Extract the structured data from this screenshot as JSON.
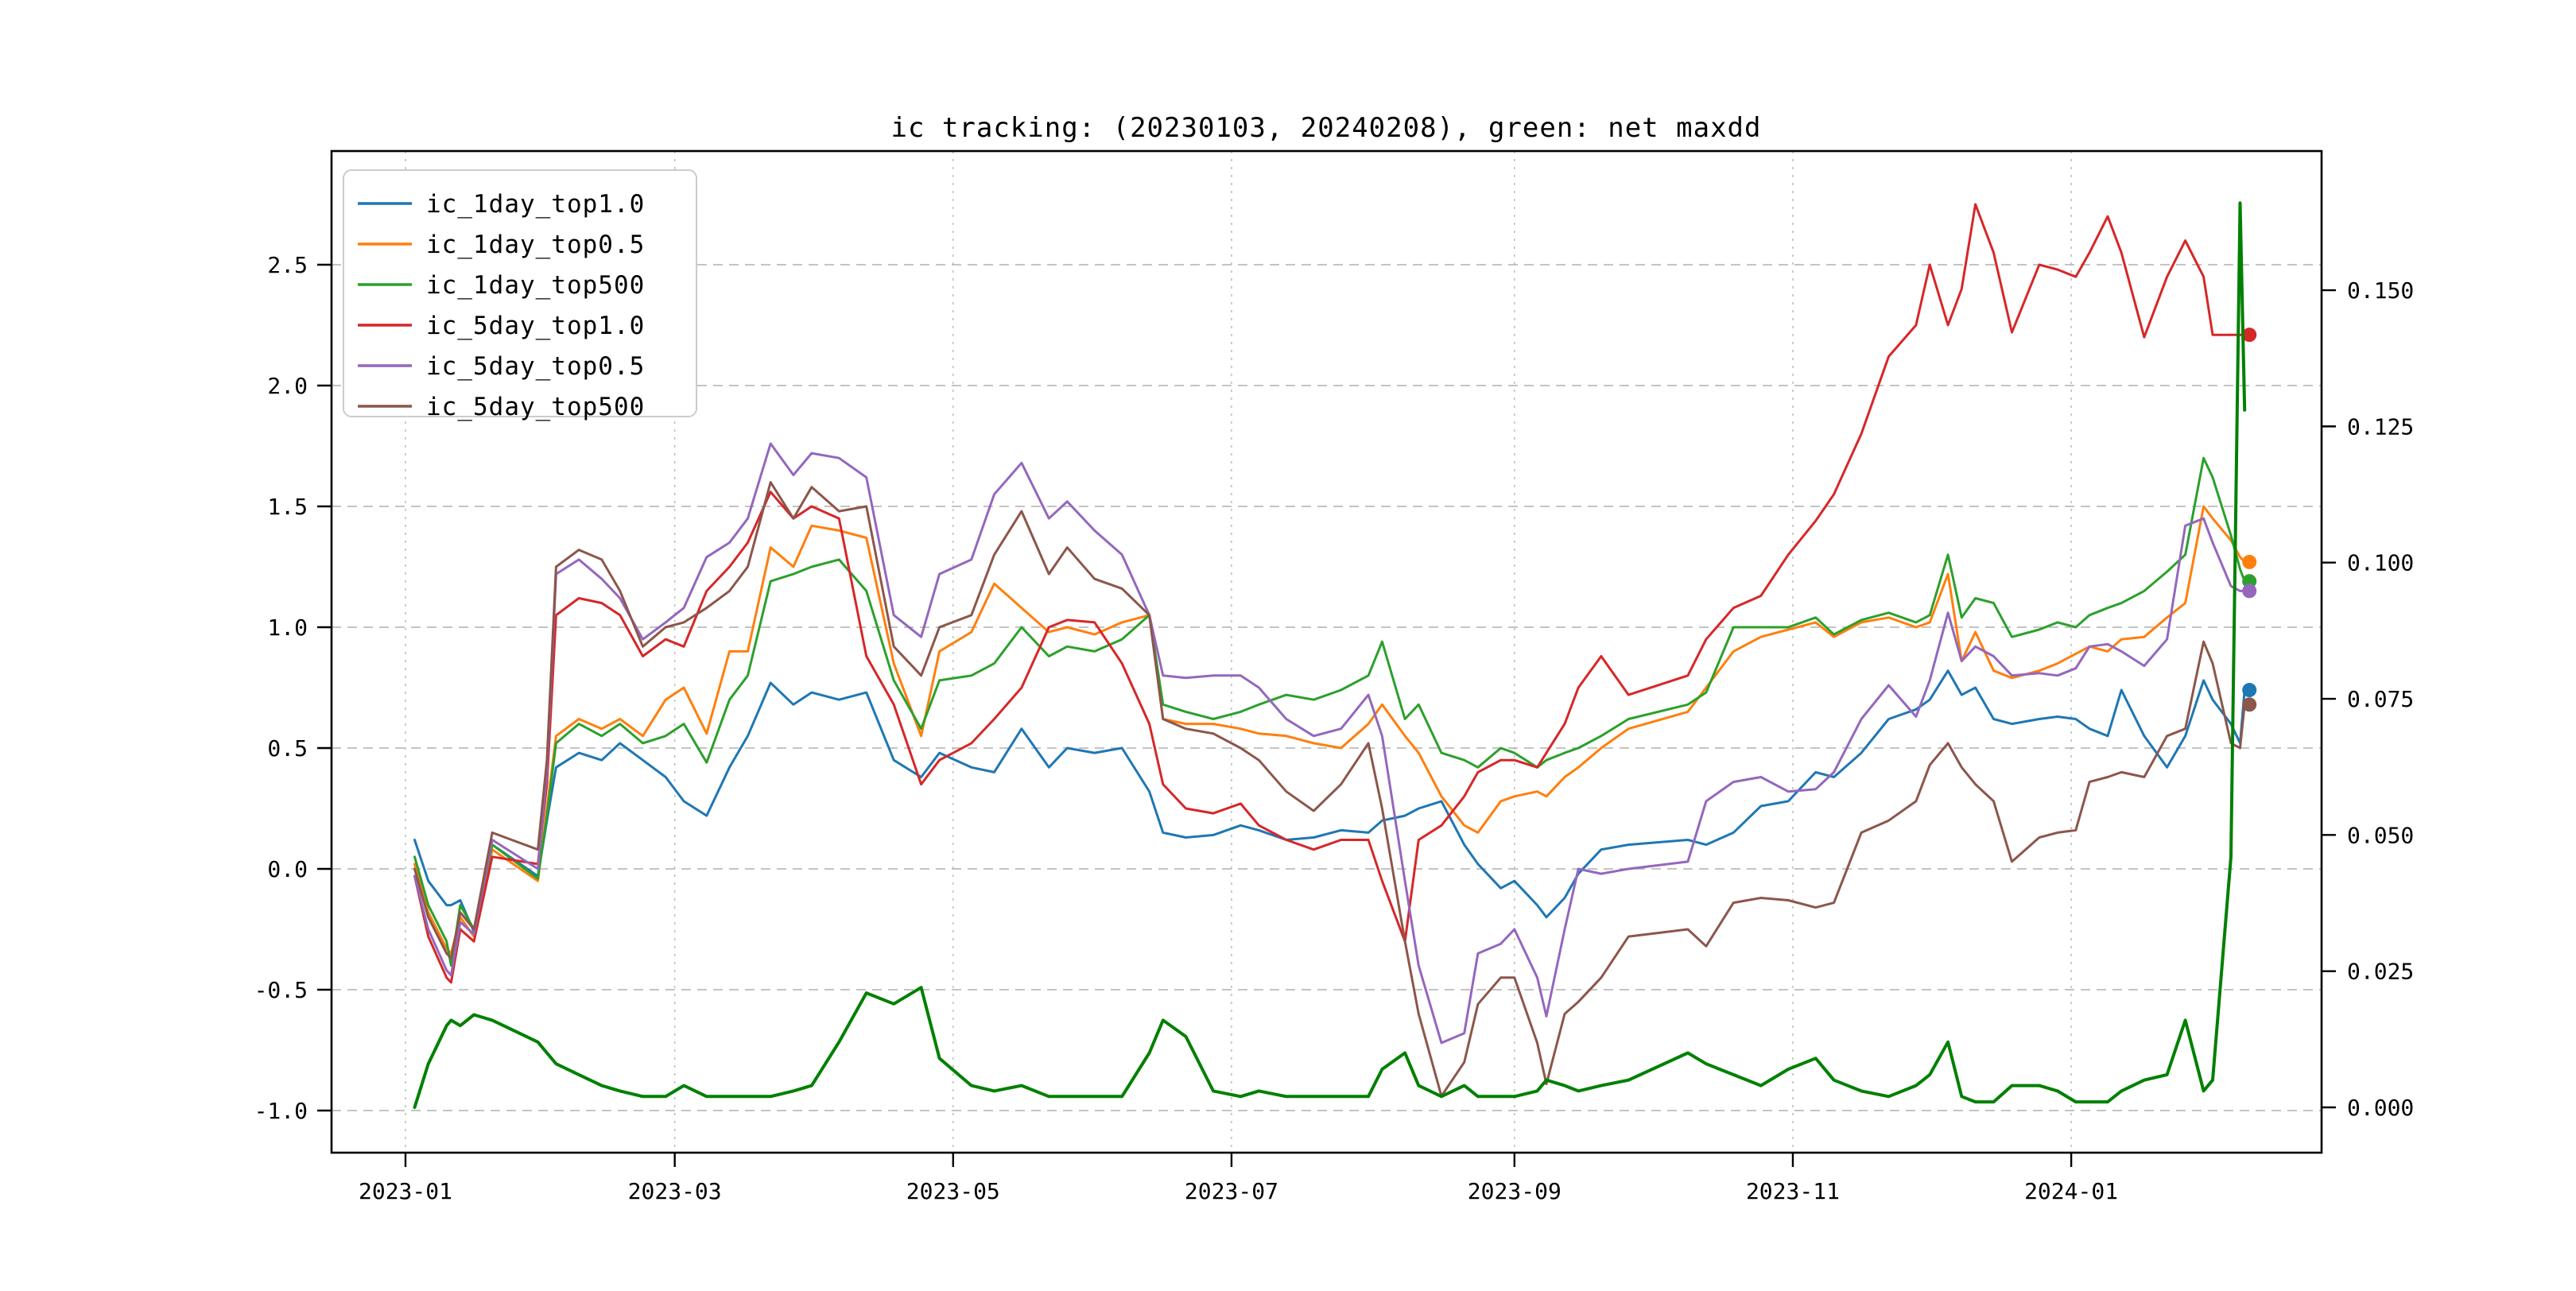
{
  "figure": {
    "background": "#ffffff",
    "spine_color": "#000000",
    "h_grid_color": "#b0b0b0",
    "v_grid_color": "#c0c0c0"
  },
  "chart_data": {
    "type": "line",
    "title": "ic tracking: (20230103, 20240208), green: net maxdd",
    "xlabel": "",
    "ylabel": "",
    "legend_position": "upper-left",
    "grid": true,
    "x_tick_labels": [
      "2023-01",
      "2023-03",
      "2023-05",
      "2023-07",
      "2023-09",
      "2023-11",
      "2024-01"
    ],
    "x_tick_dates": [
      "2023-01-01",
      "2023-03-01",
      "2023-05-01",
      "2023-07-01",
      "2023-09-01",
      "2023-11-01",
      "2024-01-01"
    ],
    "left_axis": {
      "ticks": [
        2.5,
        2.0,
        1.5,
        1.0,
        0.5,
        0.0,
        -0.5,
        -1.0
      ],
      "tick_labels": [
        "2.5",
        "2.0",
        "1.5",
        "1.0",
        "0.5",
        "0.0",
        "-0.5",
        "-1.0"
      ],
      "ylim": [
        -1.17,
        2.97
      ]
    },
    "right_axis": {
      "ticks": [
        0.15,
        0.125,
        0.1,
        0.075,
        0.05,
        0.025,
        0.0
      ],
      "tick_labels": [
        "0.150",
        "0.125",
        "0.100",
        "0.075",
        "0.050",
        "0.025",
        "0.000"
      ],
      "ylim": [
        -0.0083,
        0.1755
      ]
    },
    "x": [
      "2023-01-03",
      "2023-01-06",
      "2023-01-10",
      "2023-01-11",
      "2023-01-13",
      "2023-01-16",
      "2023-01-20",
      "2023-01-30",
      "2023-02-01",
      "2023-02-03",
      "2023-02-08",
      "2023-02-13",
      "2023-02-17",
      "2023-02-22",
      "2023-02-27",
      "2023-03-03",
      "2023-03-08",
      "2023-03-13",
      "2023-03-17",
      "2023-03-22",
      "2023-03-27",
      "2023-03-31",
      "2023-04-06",
      "2023-04-12",
      "2023-04-18",
      "2023-04-24",
      "2023-04-28",
      "2023-05-05",
      "2023-05-10",
      "2023-05-16",
      "2023-05-22",
      "2023-05-26",
      "2023-06-01",
      "2023-06-07",
      "2023-06-13",
      "2023-06-16",
      "2023-06-21",
      "2023-06-27",
      "2023-07-03",
      "2023-07-07",
      "2023-07-13",
      "2023-07-19",
      "2023-07-25",
      "2023-07-31",
      "2023-08-03",
      "2023-08-08",
      "2023-08-11",
      "2023-08-16",
      "2023-08-21",
      "2023-08-24",
      "2023-08-29",
      "2023-09-01",
      "2023-09-06",
      "2023-09-08",
      "2023-09-12",
      "2023-09-15",
      "2023-09-20",
      "2023-09-26",
      "2023-10-09",
      "2023-10-13",
      "2023-10-19",
      "2023-10-25",
      "2023-10-31",
      "2023-11-06",
      "2023-11-10",
      "2023-11-16",
      "2023-11-22",
      "2023-11-28",
      "2023-12-01",
      "2023-12-05",
      "2023-12-08",
      "2023-12-11",
      "2023-12-15",
      "2023-12-19",
      "2023-12-25",
      "2023-12-29",
      "2024-01-02",
      "2024-01-05",
      "2024-01-09",
      "2024-01-12",
      "2024-01-17",
      "2024-01-22",
      "2024-01-26",
      "2024-01-30",
      "2024-02-01",
      "2024-02-05",
      "2024-02-07",
      "2024-02-08"
    ],
    "series": [
      {
        "name": "ic_1day_top1.0",
        "color": "#1f77b4",
        "axis": "left",
        "width": 3,
        "end_dot": true,
        "values": [
          0.12,
          -0.05,
          -0.15,
          -0.15,
          -0.13,
          -0.26,
          0.1,
          -0.03,
          0.2,
          0.42,
          0.48,
          0.45,
          0.52,
          0.45,
          0.38,
          0.28,
          0.22,
          0.42,
          0.55,
          0.77,
          0.68,
          0.73,
          0.7,
          0.73,
          0.45,
          0.38,
          0.48,
          0.42,
          0.4,
          0.58,
          0.42,
          0.5,
          0.48,
          0.5,
          0.32,
          0.15,
          0.13,
          0.14,
          0.18,
          0.16,
          0.12,
          0.13,
          0.16,
          0.15,
          0.2,
          0.22,
          0.25,
          0.28,
          0.1,
          0.02,
          -0.08,
          -0.05,
          -0.15,
          -0.2,
          -0.12,
          -0.02,
          0.08,
          0.1,
          0.12,
          0.1,
          0.15,
          0.26,
          0.28,
          0.4,
          0.38,
          0.48,
          0.62,
          0.66,
          0.7,
          0.82,
          0.72,
          0.75,
          0.62,
          0.6,
          0.62,
          0.63,
          0.62,
          0.58,
          0.55,
          0.74,
          0.55,
          0.42,
          0.55,
          0.78,
          0.7,
          0.6,
          0.52,
          0.74
        ]
      },
      {
        "name": "ic_1day_top0.5",
        "color": "#ff7f0e",
        "axis": "left",
        "width": 3,
        "end_dot": true,
        "values": [
          0.02,
          -0.18,
          -0.33,
          -0.35,
          -0.2,
          -0.28,
          0.08,
          -0.05,
          0.25,
          0.55,
          0.62,
          0.58,
          0.62,
          0.55,
          0.7,
          0.75,
          0.56,
          0.9,
          0.9,
          1.33,
          1.25,
          1.42,
          1.4,
          1.37,
          0.85,
          0.55,
          0.9,
          0.98,
          1.18,
          1.08,
          0.98,
          1.0,
          0.97,
          1.02,
          1.05,
          0.62,
          0.6,
          0.6,
          0.58,
          0.56,
          0.55,
          0.52,
          0.5,
          0.6,
          0.68,
          0.55,
          0.48,
          0.3,
          0.18,
          0.15,
          0.28,
          0.3,
          0.32,
          0.3,
          0.38,
          0.42,
          0.5,
          0.58,
          0.65,
          0.75,
          0.9,
          0.96,
          0.99,
          1.02,
          0.96,
          1.02,
          1.04,
          1.0,
          1.02,
          1.22,
          0.86,
          0.98,
          0.82,
          0.79,
          0.82,
          0.85,
          0.89,
          0.92,
          0.9,
          0.95,
          0.96,
          1.04,
          1.1,
          1.5,
          1.45,
          1.36,
          1.29,
          1.27
        ]
      },
      {
        "name": "ic_1day_top500",
        "color": "#2ca02c",
        "axis": "left",
        "width": 3,
        "end_dot": true,
        "values": [
          0.05,
          -0.15,
          -0.3,
          -0.4,
          -0.15,
          -0.25,
          0.1,
          -0.04,
          0.22,
          0.52,
          0.6,
          0.55,
          0.6,
          0.52,
          0.55,
          0.6,
          0.44,
          0.7,
          0.8,
          1.19,
          1.22,
          1.25,
          1.28,
          1.15,
          0.78,
          0.58,
          0.78,
          0.8,
          0.85,
          1.0,
          0.88,
          0.92,
          0.9,
          0.95,
          1.05,
          0.68,
          0.65,
          0.62,
          0.65,
          0.68,
          0.72,
          0.7,
          0.74,
          0.8,
          0.94,
          0.62,
          0.68,
          0.48,
          0.45,
          0.42,
          0.5,
          0.48,
          0.42,
          0.45,
          0.48,
          0.5,
          0.55,
          0.62,
          0.68,
          0.73,
          1.0,
          1.0,
          1.0,
          1.04,
          0.97,
          1.03,
          1.06,
          1.02,
          1.05,
          1.3,
          1.04,
          1.12,
          1.1,
          0.96,
          0.99,
          1.02,
          1.0,
          1.05,
          1.08,
          1.1,
          1.15,
          1.23,
          1.3,
          1.7,
          1.62,
          1.38,
          1.24,
          1.19
        ]
      },
      {
        "name": "ic_5day_top1.0",
        "color": "#d62728",
        "axis": "left",
        "width": 3,
        "end_dot": true,
        "values": [
          -0.03,
          -0.28,
          -0.45,
          -0.47,
          -0.25,
          -0.3,
          0.05,
          0.02,
          0.35,
          1.05,
          1.12,
          1.1,
          1.05,
          0.88,
          0.95,
          0.92,
          1.15,
          1.25,
          1.35,
          1.56,
          1.45,
          1.5,
          1.45,
          0.88,
          0.68,
          0.35,
          0.45,
          0.52,
          0.62,
          0.75,
          1.0,
          1.03,
          1.02,
          0.85,
          0.6,
          0.35,
          0.25,
          0.23,
          0.27,
          0.18,
          0.12,
          0.08,
          0.12,
          0.12,
          -0.05,
          -0.3,
          0.12,
          0.18,
          0.3,
          0.4,
          0.45,
          0.45,
          0.42,
          0.48,
          0.6,
          0.75,
          0.88,
          0.72,
          0.8,
          0.95,
          1.08,
          1.13,
          1.3,
          1.44,
          1.55,
          1.8,
          2.12,
          2.25,
          2.5,
          2.25,
          2.4,
          2.75,
          2.55,
          2.22,
          2.5,
          2.48,
          2.45,
          2.55,
          2.7,
          2.55,
          2.2,
          2.45,
          2.6,
          2.45,
          2.21,
          2.21,
          2.21,
          2.21
        ]
      },
      {
        "name": "ic_5day_top0.5",
        "color": "#9467bd",
        "axis": "left",
        "width": 3,
        "end_dot": true,
        "values": [
          -0.03,
          -0.25,
          -0.42,
          -0.44,
          -0.22,
          -0.27,
          0.12,
          0.0,
          0.4,
          1.22,
          1.28,
          1.2,
          1.12,
          0.95,
          1.02,
          1.08,
          1.29,
          1.35,
          1.45,
          1.76,
          1.63,
          1.72,
          1.7,
          1.62,
          1.05,
          0.96,
          1.22,
          1.28,
          1.55,
          1.68,
          1.45,
          1.52,
          1.4,
          1.3,
          1.05,
          0.8,
          0.79,
          0.8,
          0.8,
          0.75,
          0.62,
          0.55,
          0.58,
          0.72,
          0.55,
          -0.05,
          -0.4,
          -0.72,
          -0.68,
          -0.35,
          -0.31,
          -0.25,
          -0.45,
          -0.61,
          -0.25,
          0.0,
          -0.02,
          0.0,
          0.03,
          0.28,
          0.36,
          0.38,
          0.32,
          0.33,
          0.4,
          0.62,
          0.76,
          0.63,
          0.78,
          1.06,
          0.86,
          0.92,
          0.88,
          0.8,
          0.81,
          0.8,
          0.83,
          0.92,
          0.93,
          0.9,
          0.84,
          0.95,
          1.42,
          1.45,
          1.35,
          1.17,
          1.15,
          1.15
        ]
      },
      {
        "name": "ic_5day_top500",
        "color": "#8c564b",
        "axis": "left",
        "width": 3,
        "end_dot": true,
        "values": [
          0.0,
          -0.2,
          -0.35,
          -0.37,
          -0.18,
          -0.25,
          0.15,
          0.08,
          0.45,
          1.25,
          1.32,
          1.28,
          1.15,
          0.92,
          1.0,
          1.02,
          1.08,
          1.15,
          1.25,
          1.6,
          1.45,
          1.58,
          1.48,
          1.5,
          0.92,
          0.8,
          1.0,
          1.05,
          1.3,
          1.48,
          1.22,
          1.33,
          1.2,
          1.16,
          1.05,
          0.62,
          0.58,
          0.56,
          0.5,
          0.45,
          0.32,
          0.24,
          0.35,
          0.52,
          0.25,
          -0.3,
          -0.6,
          -0.94,
          -0.8,
          -0.56,
          -0.45,
          -0.45,
          -0.72,
          -0.89,
          -0.6,
          -0.55,
          -0.45,
          -0.28,
          -0.25,
          -0.32,
          -0.14,
          -0.12,
          -0.13,
          -0.16,
          -0.14,
          0.15,
          0.2,
          0.28,
          0.43,
          0.52,
          0.42,
          0.35,
          0.28,
          0.03,
          0.13,
          0.15,
          0.16,
          0.36,
          0.38,
          0.4,
          0.38,
          0.55,
          0.58,
          0.94,
          0.85,
          0.52,
          0.5,
          0.68
        ]
      },
      {
        "name": "net_maxdd",
        "color": "#008000",
        "axis": "right",
        "width": 4,
        "end_dot": false,
        "in_legend": false,
        "values": [
          0.0,
          0.008,
          0.015,
          0.016,
          0.015,
          0.017,
          0.016,
          0.012,
          0.01,
          0.008,
          0.006,
          0.004,
          0.003,
          0.002,
          0.002,
          0.004,
          0.002,
          0.002,
          0.002,
          0.002,
          0.003,
          0.004,
          0.012,
          0.021,
          0.019,
          0.022,
          0.009,
          0.004,
          0.003,
          0.004,
          0.002,
          0.002,
          0.002,
          0.002,
          0.01,
          0.016,
          0.013,
          0.003,
          0.002,
          0.003,
          0.002,
          0.002,
          0.002,
          0.002,
          0.007,
          0.01,
          0.004,
          0.002,
          0.004,
          0.002,
          0.002,
          0.002,
          0.003,
          0.005,
          0.004,
          0.003,
          0.004,
          0.005,
          0.01,
          0.008,
          0.006,
          0.004,
          0.007,
          0.009,
          0.005,
          0.003,
          0.002,
          0.004,
          0.006,
          0.012,
          0.002,
          0.001,
          0.001,
          0.004,
          0.004,
          0.003,
          0.001,
          0.001,
          0.001,
          0.003,
          0.005,
          0.006,
          0.016,
          0.003,
          0.005,
          0.046,
          0.166,
          0.128
        ]
      }
    ],
    "legend_entries": [
      "ic_1day_top1.0",
      "ic_1day_top0.5",
      "ic_1day_top500",
      "ic_5day_top1.0",
      "ic_5day_top0.5",
      "ic_5day_top500"
    ],
    "end_dot_values": {
      "ic_1day_top1.0": 0.74,
      "ic_1day_top0.5": 1.27,
      "ic_1day_top500": 1.19,
      "ic_5day_top1.0": 2.21,
      "ic_5day_top0.5": 1.15,
      "ic_5day_top500": 0.68,
      "net_maxdd_last": 0.128
    }
  }
}
